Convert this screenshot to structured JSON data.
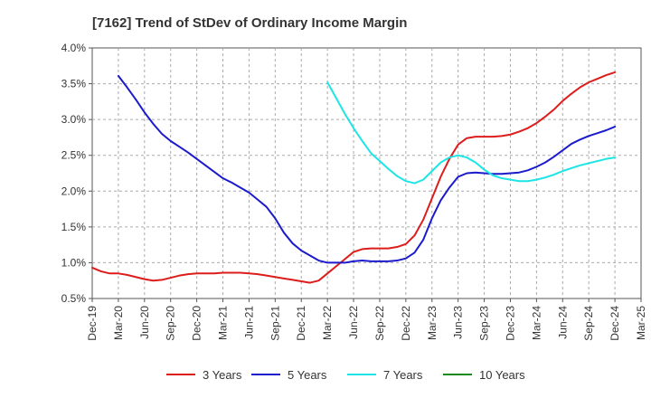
{
  "chart_data": {
    "type": "line",
    "title": "[7162]  Trend of StDev of Ordinary Income Margin",
    "xlabel": "",
    "ylabel": "",
    "ylim": [
      0.5,
      4.0
    ],
    "yticks": [
      0.5,
      1.0,
      1.5,
      2.0,
      2.5,
      3.0,
      3.5,
      4.0
    ],
    "ytick_labels": [
      "0.5%",
      "1.0%",
      "1.5%",
      "2.0%",
      "2.5%",
      "3.0%",
      "3.5%",
      "4.0%"
    ],
    "x_tick_labels": [
      "Dec-19",
      "Mar-20",
      "Jun-20",
      "Sep-20",
      "Dec-20",
      "Mar-21",
      "Jun-21",
      "Sep-21",
      "Dec-21",
      "Mar-22",
      "Jun-22",
      "Sep-22",
      "Dec-22",
      "Mar-23",
      "Jun-23",
      "Sep-23",
      "Dec-23",
      "Mar-24",
      "Jun-24",
      "Sep-24",
      "Dec-24",
      "Mar-25"
    ],
    "x_range": [
      "Dec-19",
      "Mar-25"
    ],
    "grid": true,
    "legend_position": "bottom",
    "series": [
      {
        "name": "3 Years",
        "color": "#dd1c1c",
        "x": [
          "Dec-19",
          "Jan-20",
          "Feb-20",
          "Mar-20",
          "Apr-20",
          "May-20",
          "Jun-20",
          "Jul-20",
          "Aug-20",
          "Sep-20",
          "Oct-20",
          "Nov-20",
          "Dec-20",
          "Jan-21",
          "Feb-21",
          "Mar-21",
          "Apr-21",
          "May-21",
          "Jun-21",
          "Jul-21",
          "Aug-21",
          "Sep-21",
          "Oct-21",
          "Nov-21",
          "Dec-21",
          "Jan-22",
          "Feb-22",
          "Mar-22",
          "Apr-22",
          "May-22",
          "Jun-22",
          "Jul-22",
          "Aug-22",
          "Sep-22",
          "Oct-22",
          "Nov-22",
          "Dec-22",
          "Jan-23",
          "Feb-23",
          "Mar-23",
          "Apr-23",
          "May-23",
          "Jun-23",
          "Jul-23",
          "Aug-23",
          "Sep-23",
          "Oct-23",
          "Nov-23",
          "Dec-23",
          "Jan-24",
          "Feb-24",
          "Mar-24",
          "Apr-24",
          "May-24",
          "Jun-24",
          "Jul-24",
          "Aug-24",
          "Sep-24",
          "Oct-24",
          "Nov-24",
          "Dec-24"
        ],
        "values": [
          0.93,
          0.88,
          0.85,
          0.85,
          0.83,
          0.8,
          0.77,
          0.75,
          0.76,
          0.79,
          0.82,
          0.84,
          0.85,
          0.85,
          0.85,
          0.86,
          0.86,
          0.86,
          0.85,
          0.84,
          0.82,
          0.8,
          0.78,
          0.76,
          0.74,
          0.72,
          0.75,
          0.85,
          0.95,
          1.05,
          1.15,
          1.19,
          1.2,
          1.2,
          1.2,
          1.22,
          1.26,
          1.38,
          1.6,
          1.9,
          2.2,
          2.45,
          2.65,
          2.74,
          2.76,
          2.76,
          2.76,
          2.77,
          2.79,
          2.83,
          2.88,
          2.95,
          3.04,
          3.14,
          3.26,
          3.36,
          3.45,
          3.52,
          3.57,
          3.62,
          3.66
        ]
      },
      {
        "name": "5 Years",
        "color": "#1b1bcc",
        "x": [
          "Mar-20",
          "Apr-20",
          "May-20",
          "Jun-20",
          "Jul-20",
          "Aug-20",
          "Sep-20",
          "Oct-20",
          "Nov-20",
          "Dec-20",
          "Jan-21",
          "Feb-21",
          "Mar-21",
          "Apr-21",
          "May-21",
          "Jun-21",
          "Jul-21",
          "Aug-21",
          "Sep-21",
          "Oct-21",
          "Nov-21",
          "Dec-21",
          "Jan-22",
          "Feb-22",
          "Mar-22",
          "Apr-22",
          "May-22",
          "Jun-22",
          "Jul-22",
          "Aug-22",
          "Sep-22",
          "Oct-22",
          "Nov-22",
          "Dec-22",
          "Jan-23",
          "Feb-23",
          "Mar-23",
          "Apr-23",
          "May-23",
          "Jun-23",
          "Jul-23",
          "Aug-23",
          "Sep-23",
          "Oct-23",
          "Nov-23",
          "Dec-23",
          "Jan-24",
          "Feb-24",
          "Mar-24",
          "Apr-24",
          "May-24",
          "Jun-24",
          "Jul-24",
          "Aug-24",
          "Sep-24",
          "Oct-24",
          "Nov-24",
          "Dec-24"
        ],
        "values": [
          3.61,
          3.45,
          3.28,
          3.1,
          2.94,
          2.8,
          2.7,
          2.62,
          2.54,
          2.45,
          2.36,
          2.27,
          2.18,
          2.12,
          2.05,
          1.98,
          1.88,
          1.78,
          1.62,
          1.42,
          1.27,
          1.17,
          1.1,
          1.03,
          1.0,
          1.0,
          1.0,
          1.02,
          1.03,
          1.02,
          1.02,
          1.02,
          1.03,
          1.06,
          1.14,
          1.32,
          1.62,
          1.87,
          2.05,
          2.2,
          2.25,
          2.26,
          2.25,
          2.24,
          2.24,
          2.25,
          2.26,
          2.29,
          2.34,
          2.4,
          2.48,
          2.57,
          2.66,
          2.72,
          2.77,
          2.81,
          2.85,
          2.9
        ]
      },
      {
        "name": "7 Years",
        "color": "#1ee5e5",
        "x": [
          "Mar-22",
          "Apr-22",
          "May-22",
          "Jun-22",
          "Jul-22",
          "Aug-22",
          "Sep-22",
          "Oct-22",
          "Nov-22",
          "Dec-22",
          "Jan-23",
          "Feb-23",
          "Mar-23",
          "Apr-23",
          "May-23",
          "Jun-23",
          "Jul-23",
          "Aug-23",
          "Sep-23",
          "Oct-23",
          "Nov-23",
          "Dec-23",
          "Jan-24",
          "Feb-24",
          "Mar-24",
          "Apr-24",
          "May-24",
          "Jun-24",
          "Jul-24",
          "Aug-24",
          "Sep-24",
          "Oct-24",
          "Nov-24",
          "Dec-24"
        ],
        "values": [
          3.52,
          3.3,
          3.08,
          2.88,
          2.7,
          2.53,
          2.42,
          2.31,
          2.21,
          2.14,
          2.11,
          2.16,
          2.28,
          2.4,
          2.47,
          2.5,
          2.47,
          2.4,
          2.3,
          2.22,
          2.18,
          2.16,
          2.14,
          2.14,
          2.16,
          2.19,
          2.23,
          2.28,
          2.32,
          2.36,
          2.39,
          2.42,
          2.45,
          2.47
        ]
      },
      {
        "name": "10 Years",
        "color": "#1a8a1a",
        "x": [],
        "values": []
      }
    ]
  }
}
